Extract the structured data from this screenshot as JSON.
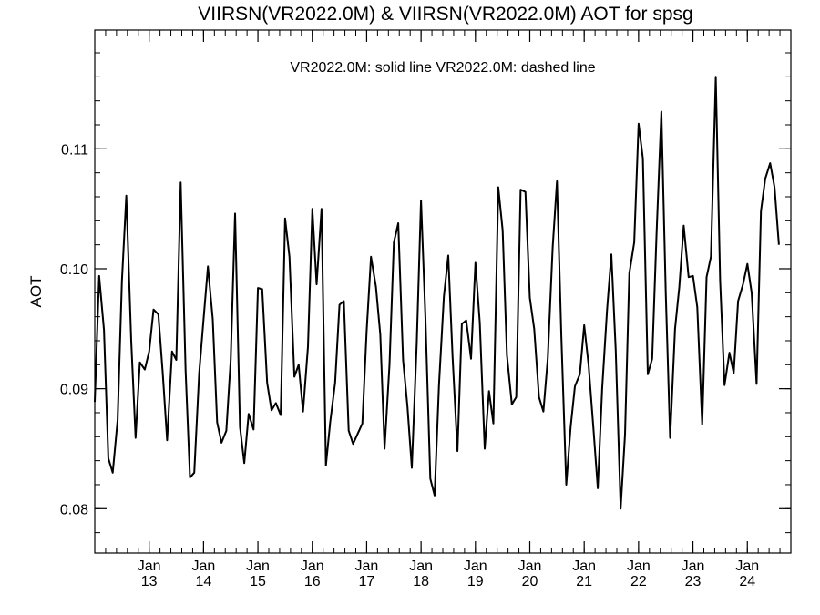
{
  "chart_data": {
    "type": "line",
    "title": "VIIRSN(VR2022.0M) & VIIRSN(VR2022.0M)  AOT for spsg",
    "subtitle": "VR2022.0M: solid line   VR2022.0M: dashed line",
    "xlabel": "",
    "ylabel": "AOT",
    "grid": false,
    "x_unit": "day",
    "xlim": [
      12.0,
      24.8
    ],
    "ylim": [
      0.0763,
      0.1199
    ],
    "x_ticks": [
      {
        "value": 13,
        "line1": "Jan",
        "line2": "13"
      },
      {
        "value": 14,
        "line1": "Jan",
        "line2": "14"
      },
      {
        "value": 15,
        "line1": "Jan",
        "line2": "15"
      },
      {
        "value": 16,
        "line1": "Jan",
        "line2": "16"
      },
      {
        "value": 17,
        "line1": "Jan",
        "line2": "17"
      },
      {
        "value": 18,
        "line1": "Jan",
        "line2": "18"
      },
      {
        "value": 19,
        "line1": "Jan",
        "line2": "19"
      },
      {
        "value": 20,
        "line1": "Jan",
        "line2": "20"
      },
      {
        "value": 21,
        "line1": "Jan",
        "line2": "21"
      },
      {
        "value": 22,
        "line1": "Jan",
        "line2": "22"
      },
      {
        "value": 23,
        "line1": "Jan",
        "line2": "23"
      },
      {
        "value": 24,
        "line1": "Jan",
        "line2": "24"
      }
    ],
    "y_ticks": [
      {
        "value": 0.08,
        "label": "0.08"
      },
      {
        "value": 0.09,
        "label": "0.09"
      },
      {
        "value": 0.1,
        "label": "0.10"
      },
      {
        "value": 0.11,
        "label": "0.11"
      }
    ],
    "x_minor_step": 0.2,
    "y_minor_step": 0.002,
    "series": [
      {
        "style": "solid",
        "color": "#000000",
        "points": [
          [
            12.0,
            0.0889
          ],
          [
            12.08,
            0.0994
          ],
          [
            12.17,
            0.0949
          ],
          [
            12.25,
            0.0842
          ],
          [
            12.33,
            0.083
          ],
          [
            12.42,
            0.0874
          ],
          [
            12.5,
            0.099
          ],
          [
            12.58,
            0.1061
          ],
          [
            12.67,
            0.094
          ],
          [
            12.75,
            0.0859
          ],
          [
            12.83,
            0.0922
          ],
          [
            12.92,
            0.0916
          ],
          [
            13.0,
            0.0931
          ],
          [
            13.08,
            0.0966
          ],
          [
            13.17,
            0.0962
          ],
          [
            13.25,
            0.0913
          ],
          [
            13.33,
            0.0857
          ],
          [
            13.42,
            0.0931
          ],
          [
            13.5,
            0.0924
          ],
          [
            13.58,
            0.1072
          ],
          [
            13.67,
            0.0915
          ],
          [
            13.75,
            0.0826
          ],
          [
            13.83,
            0.083
          ],
          [
            13.92,
            0.0913
          ],
          [
            14.0,
            0.0958
          ],
          [
            14.08,
            0.1002
          ],
          [
            14.17,
            0.0958
          ],
          [
            14.25,
            0.0872
          ],
          [
            14.33,
            0.0855
          ],
          [
            14.42,
            0.0865
          ],
          [
            14.5,
            0.0924
          ],
          [
            14.58,
            0.1046
          ],
          [
            14.67,
            0.0868
          ],
          [
            14.75,
            0.0838
          ],
          [
            14.83,
            0.0879
          ],
          [
            14.92,
            0.0866
          ],
          [
            15.0,
            0.0984
          ],
          [
            15.08,
            0.0983
          ],
          [
            15.17,
            0.0905
          ],
          [
            15.25,
            0.0882
          ],
          [
            15.33,
            0.0888
          ],
          [
            15.42,
            0.0878
          ],
          [
            15.5,
            0.1042
          ],
          [
            15.58,
            0.101
          ],
          [
            15.67,
            0.091
          ],
          [
            15.75,
            0.092
          ],
          [
            15.83,
            0.0881
          ],
          [
            15.92,
            0.0935
          ],
          [
            16.0,
            0.105
          ],
          [
            16.08,
            0.0987
          ],
          [
            16.17,
            0.105
          ],
          [
            16.25,
            0.0836
          ],
          [
            16.33,
            0.0872
          ],
          [
            16.42,
            0.0905
          ],
          [
            16.5,
            0.097
          ],
          [
            16.58,
            0.0973
          ],
          [
            16.67,
            0.0865
          ],
          [
            16.75,
            0.0854
          ],
          [
            16.83,
            0.0862
          ],
          [
            16.92,
            0.0871
          ],
          [
            17.0,
            0.0948
          ],
          [
            17.08,
            0.101
          ],
          [
            17.17,
            0.0985
          ],
          [
            17.25,
            0.0945
          ],
          [
            17.33,
            0.085
          ],
          [
            17.42,
            0.092
          ],
          [
            17.5,
            0.1022
          ],
          [
            17.58,
            0.1038
          ],
          [
            17.67,
            0.0924
          ],
          [
            17.75,
            0.0885
          ],
          [
            17.83,
            0.0834
          ],
          [
            17.92,
            0.0938
          ],
          [
            18.0,
            0.1057
          ],
          [
            18.08,
            0.096
          ],
          [
            18.17,
            0.0825
          ],
          [
            18.25,
            0.0811
          ],
          [
            18.33,
            0.0903
          ],
          [
            18.42,
            0.0977
          ],
          [
            18.5,
            0.1011
          ],
          [
            18.58,
            0.0927
          ],
          [
            18.67,
            0.0848
          ],
          [
            18.75,
            0.0954
          ],
          [
            18.83,
            0.0957
          ],
          [
            18.92,
            0.0925
          ],
          [
            19.0,
            0.1005
          ],
          [
            19.08,
            0.0955
          ],
          [
            19.17,
            0.085
          ],
          [
            19.25,
            0.0898
          ],
          [
            19.33,
            0.0871
          ],
          [
            19.42,
            0.1068
          ],
          [
            19.5,
            0.1032
          ],
          [
            19.58,
            0.0928
          ],
          [
            19.67,
            0.0887
          ],
          [
            19.75,
            0.0893
          ],
          [
            19.83,
            0.1066
          ],
          [
            19.92,
            0.1064
          ],
          [
            20.0,
            0.0976
          ],
          [
            20.08,
            0.095
          ],
          [
            20.17,
            0.0893
          ],
          [
            20.25,
            0.0881
          ],
          [
            20.33,
            0.0925
          ],
          [
            20.42,
            0.1018
          ],
          [
            20.5,
            0.1073
          ],
          [
            20.58,
            0.0944
          ],
          [
            20.67,
            0.082
          ],
          [
            20.75,
            0.0868
          ],
          [
            20.83,
            0.0902
          ],
          [
            20.92,
            0.0912
          ],
          [
            21.0,
            0.0953
          ],
          [
            21.08,
            0.092
          ],
          [
            21.17,
            0.0867
          ],
          [
            21.25,
            0.0817
          ],
          [
            21.33,
            0.09
          ],
          [
            21.42,
            0.0966
          ],
          [
            21.5,
            0.1012
          ],
          [
            21.58,
            0.0932
          ],
          [
            21.67,
            0.08
          ],
          [
            21.75,
            0.0862
          ],
          [
            21.83,
            0.0996
          ],
          [
            21.92,
            0.1022
          ],
          [
            22.0,
            0.1121
          ],
          [
            22.08,
            0.1092
          ],
          [
            22.17,
            0.0912
          ],
          [
            22.25,
            0.0925
          ],
          [
            22.33,
            0.1029
          ],
          [
            22.42,
            0.1131
          ],
          [
            22.5,
            0.098
          ],
          [
            22.58,
            0.0859
          ],
          [
            22.67,
            0.095
          ],
          [
            22.75,
            0.0985
          ],
          [
            22.83,
            0.1036
          ],
          [
            22.92,
            0.0993
          ],
          [
            23.0,
            0.0994
          ],
          [
            23.08,
            0.0968
          ],
          [
            23.17,
            0.087
          ],
          [
            23.25,
            0.0993
          ],
          [
            23.33,
            0.101
          ],
          [
            23.42,
            0.116
          ],
          [
            23.5,
            0.099
          ],
          [
            23.58,
            0.0903
          ],
          [
            23.67,
            0.093
          ],
          [
            23.75,
            0.0913
          ],
          [
            23.83,
            0.0973
          ],
          [
            23.92,
            0.0987
          ],
          [
            24.0,
            0.1004
          ],
          [
            24.08,
            0.098
          ],
          [
            24.17,
            0.0904
          ],
          [
            24.25,
            0.1048
          ],
          [
            24.33,
            0.1075
          ],
          [
            24.42,
            0.1088
          ],
          [
            24.5,
            0.1068
          ],
          [
            24.58,
            0.102
          ]
        ]
      }
    ]
  }
}
